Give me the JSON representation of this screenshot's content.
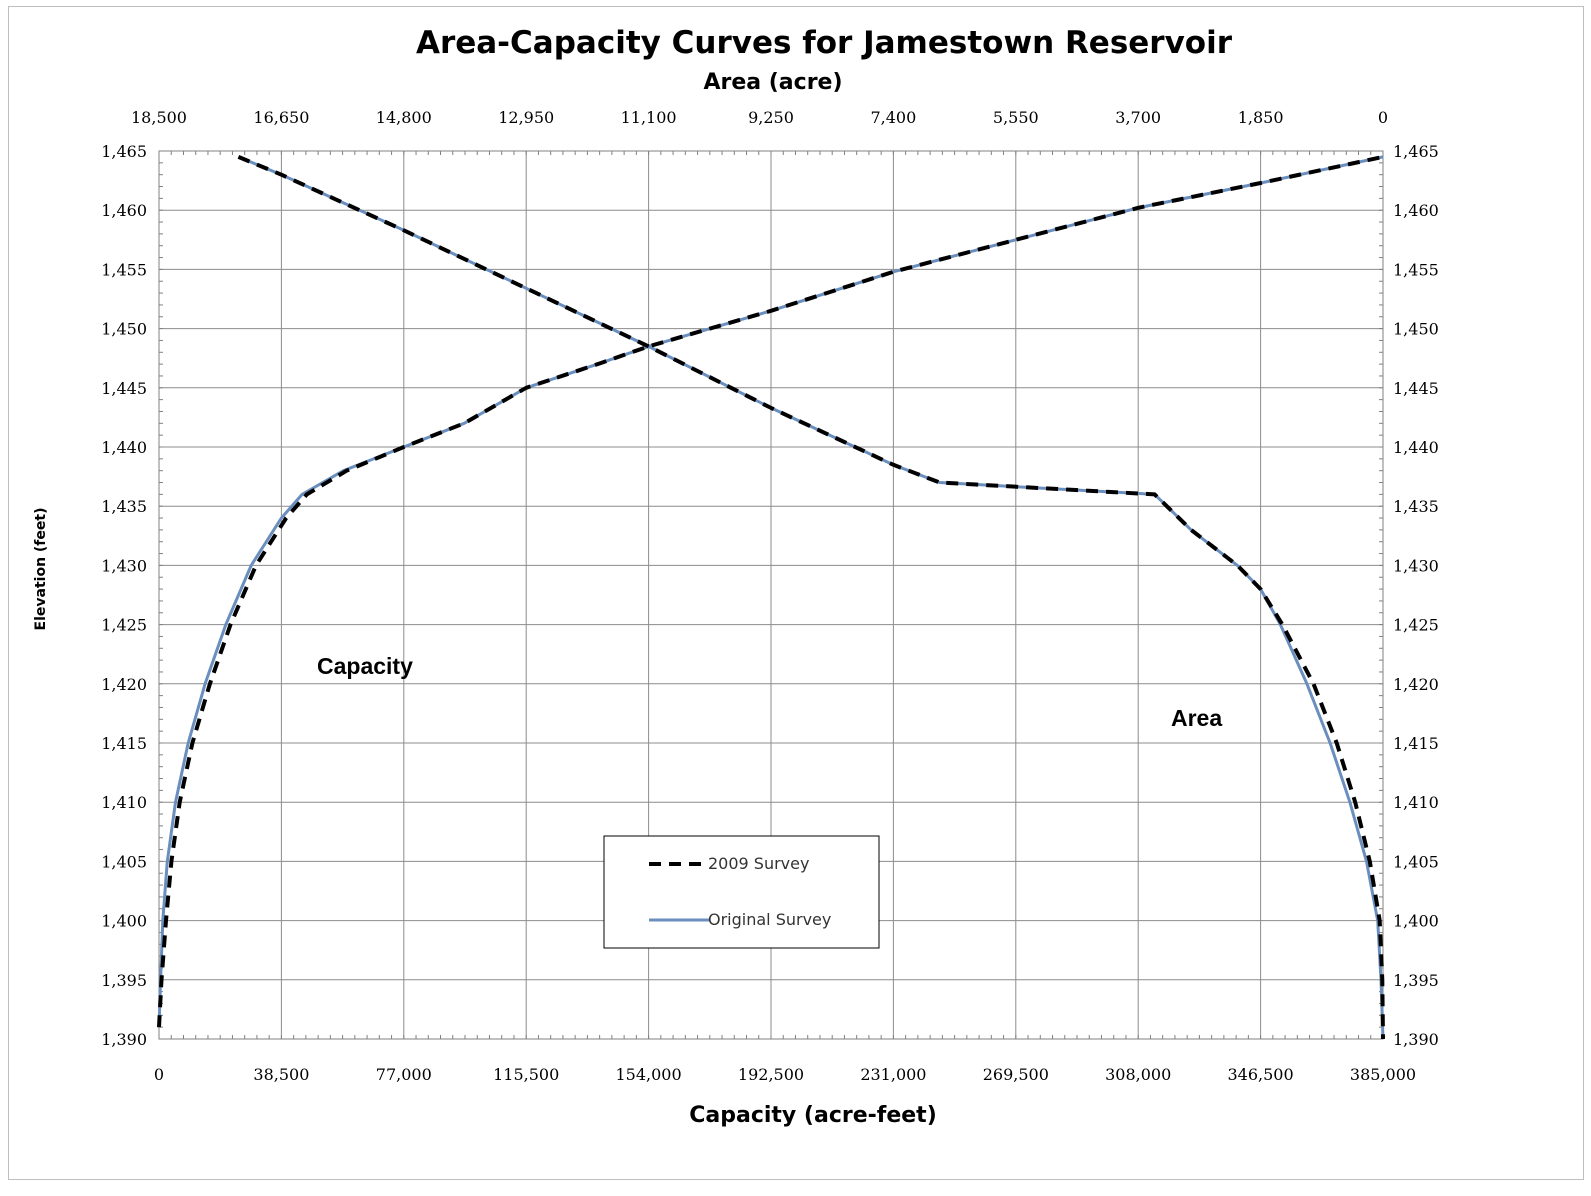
{
  "chart_data": {
    "type": "line",
    "title": "Area-Capacity Curves for Jamestown Reservoir",
    "x_bottom": {
      "label": "Capacity (acre-feet)",
      "range": [
        0,
        385000
      ],
      "ticks": [
        "0",
        "38,500",
        "77,000",
        "115,500",
        "154,000",
        "192,500",
        "231,000",
        "269,500",
        "308,000",
        "346,500",
        "385,000"
      ]
    },
    "x_top": {
      "label": "Area (acre)",
      "range": [
        18500,
        0
      ],
      "reversed": true,
      "ticks": [
        "18,500",
        "16,650",
        "14,800",
        "12,950",
        "11,100",
        "9,250",
        "7,400",
        "5,550",
        "3,700",
        "1,850",
        "0"
      ]
    },
    "y": {
      "label": "Elevation (feet)",
      "range": [
        1390,
        1465
      ],
      "ticks": [
        "1,390",
        "1,395",
        "1,400",
        "1,405",
        "1,410",
        "1,415",
        "1,420",
        "1,425",
        "1,430",
        "1,435",
        "1,440",
        "1,445",
        "1,450",
        "1,455",
        "1,460",
        "1,465"
      ],
      "mirror_right": true
    },
    "grid": true,
    "legend": {
      "placement": "bottom-center",
      "entries": [
        {
          "name": "2009 Survey",
          "style": "dashed",
          "color": "#000000"
        },
        {
          "name": "Original Survey",
          "style": "solid",
          "color": "#6a8fbf"
        }
      ]
    },
    "annotations": [
      "Capacity",
      "Area"
    ],
    "series": [
      {
        "curve": "Capacity",
        "survey": "Original Survey",
        "axis": "bottom",
        "points": [
          [
            0,
            1391
          ],
          [
            500,
            1395
          ],
          [
            1200,
            1400
          ],
          [
            2600,
            1405
          ],
          [
            5200,
            1410
          ],
          [
            9200,
            1415
          ],
          [
            14500,
            1420
          ],
          [
            21000,
            1425
          ],
          [
            29000,
            1430
          ],
          [
            38500,
            1434
          ],
          [
            45000,
            1436
          ],
          [
            58000,
            1438
          ],
          [
            77000,
            1440
          ],
          [
            96000,
            1442
          ],
          [
            115500,
            1445
          ],
          [
            138000,
            1447
          ],
          [
            154000,
            1448.5
          ],
          [
            192500,
            1451.5
          ],
          [
            231000,
            1454.8
          ],
          [
            269500,
            1457.5
          ],
          [
            308000,
            1460.2
          ],
          [
            346500,
            1462.3
          ],
          [
            385000,
            1464.5
          ]
        ]
      },
      {
        "curve": "Capacity",
        "survey": "2009 Survey",
        "axis": "bottom",
        "points": [
          [
            0,
            1391
          ],
          [
            800,
            1395
          ],
          [
            2200,
            1400
          ],
          [
            3900,
            1405
          ],
          [
            6500,
            1410
          ],
          [
            10500,
            1415
          ],
          [
            16000,
            1420
          ],
          [
            22500,
            1425
          ],
          [
            30500,
            1430
          ],
          [
            40000,
            1434
          ],
          [
            46500,
            1436
          ],
          [
            59000,
            1438
          ],
          [
            77000,
            1440
          ],
          [
            96000,
            1442
          ],
          [
            115500,
            1445
          ],
          [
            138000,
            1447
          ],
          [
            154000,
            1448.5
          ],
          [
            192500,
            1451.5
          ],
          [
            231000,
            1454.8
          ],
          [
            269500,
            1457.5
          ],
          [
            308000,
            1460.2
          ],
          [
            346500,
            1462.3
          ],
          [
            385000,
            1464.5
          ]
        ]
      },
      {
        "curve": "Area",
        "survey": "Original Survey",
        "axis": "top",
        "points": [
          [
            17300,
            1464.5
          ],
          [
            16650,
            1463
          ],
          [
            14800,
            1458.3
          ],
          [
            12950,
            1453.4
          ],
          [
            11100,
            1448.5
          ],
          [
            9250,
            1443.3
          ],
          [
            7400,
            1438.5
          ],
          [
            6700,
            1437
          ],
          [
            3450,
            1436
          ],
          [
            2900,
            1433
          ],
          [
            2200,
            1430
          ],
          [
            1850,
            1428
          ],
          [
            1550,
            1425
          ],
          [
            1150,
            1420
          ],
          [
            800,
            1415
          ],
          [
            500,
            1410
          ],
          [
            250,
            1405
          ],
          [
            80,
            1400
          ],
          [
            30,
            1395
          ],
          [
            0,
            1390
          ]
        ]
      },
      {
        "curve": "Area",
        "survey": "2009 Survey",
        "axis": "top",
        "points": [
          [
            17300,
            1464.5
          ],
          [
            16650,
            1463
          ],
          [
            14800,
            1458.3
          ],
          [
            12950,
            1453.4
          ],
          [
            11100,
            1448.5
          ],
          [
            9250,
            1443.3
          ],
          [
            7400,
            1438.5
          ],
          [
            6700,
            1437
          ],
          [
            3450,
            1436
          ],
          [
            2900,
            1433
          ],
          [
            2200,
            1430
          ],
          [
            1850,
            1428
          ],
          [
            1520,
            1425
          ],
          [
            1050,
            1420
          ],
          [
            700,
            1415
          ],
          [
            420,
            1410
          ],
          [
            200,
            1405
          ],
          [
            50,
            1400
          ],
          [
            10,
            1395
          ],
          [
            0,
            1390
          ]
        ]
      }
    ]
  }
}
